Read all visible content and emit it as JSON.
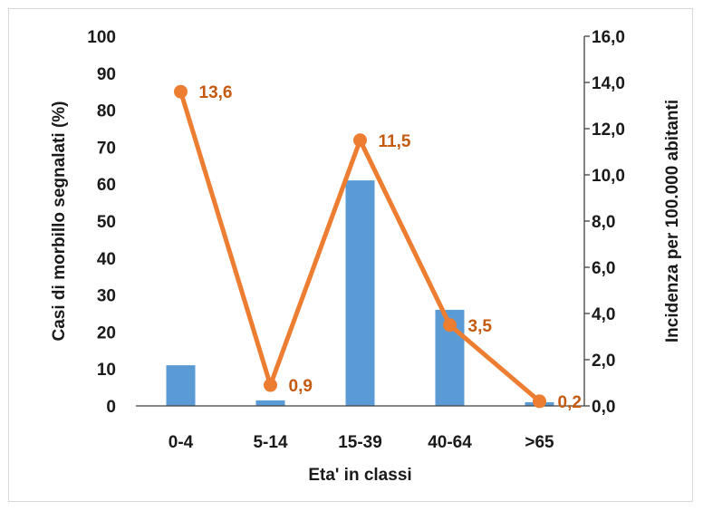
{
  "chart_data": {
    "type": "bar",
    "categories": [
      "0-4",
      "5-14",
      "15-39",
      "40-64",
      ">65"
    ],
    "series": [
      {
        "type": "bar",
        "axis": "left",
        "values": [
          11,
          1.5,
          61,
          26,
          1
        ],
        "color": "#5b9bd5"
      },
      {
        "type": "line",
        "axis": "right",
        "values": [
          13.6,
          0.9,
          11.5,
          3.5,
          0.2
        ],
        "labels": [
          "13,6",
          "0,9",
          "11,5",
          "3,5",
          "0,2"
        ],
        "color": "#ed7d31",
        "label_color": "#c55a11"
      }
    ],
    "xlabel": "Eta' in classi",
    "ylabel": "Casi di morbillo segnalati (%)",
    "y2label": "Incidenza per 100.000 abitanti",
    "ylim": [
      0,
      100
    ],
    "y2lim": [
      0,
      16
    ],
    "yticks": [
      "0",
      "10",
      "20",
      "30",
      "40",
      "50",
      "60",
      "70",
      "80",
      "90",
      "100"
    ],
    "y2ticks": [
      "0,0",
      "2,0",
      "4,0",
      "6,0",
      "8,0",
      "10,0",
      "12,0",
      "14,0",
      "16,0"
    ],
    "grid": false,
    "legend": "none"
  }
}
